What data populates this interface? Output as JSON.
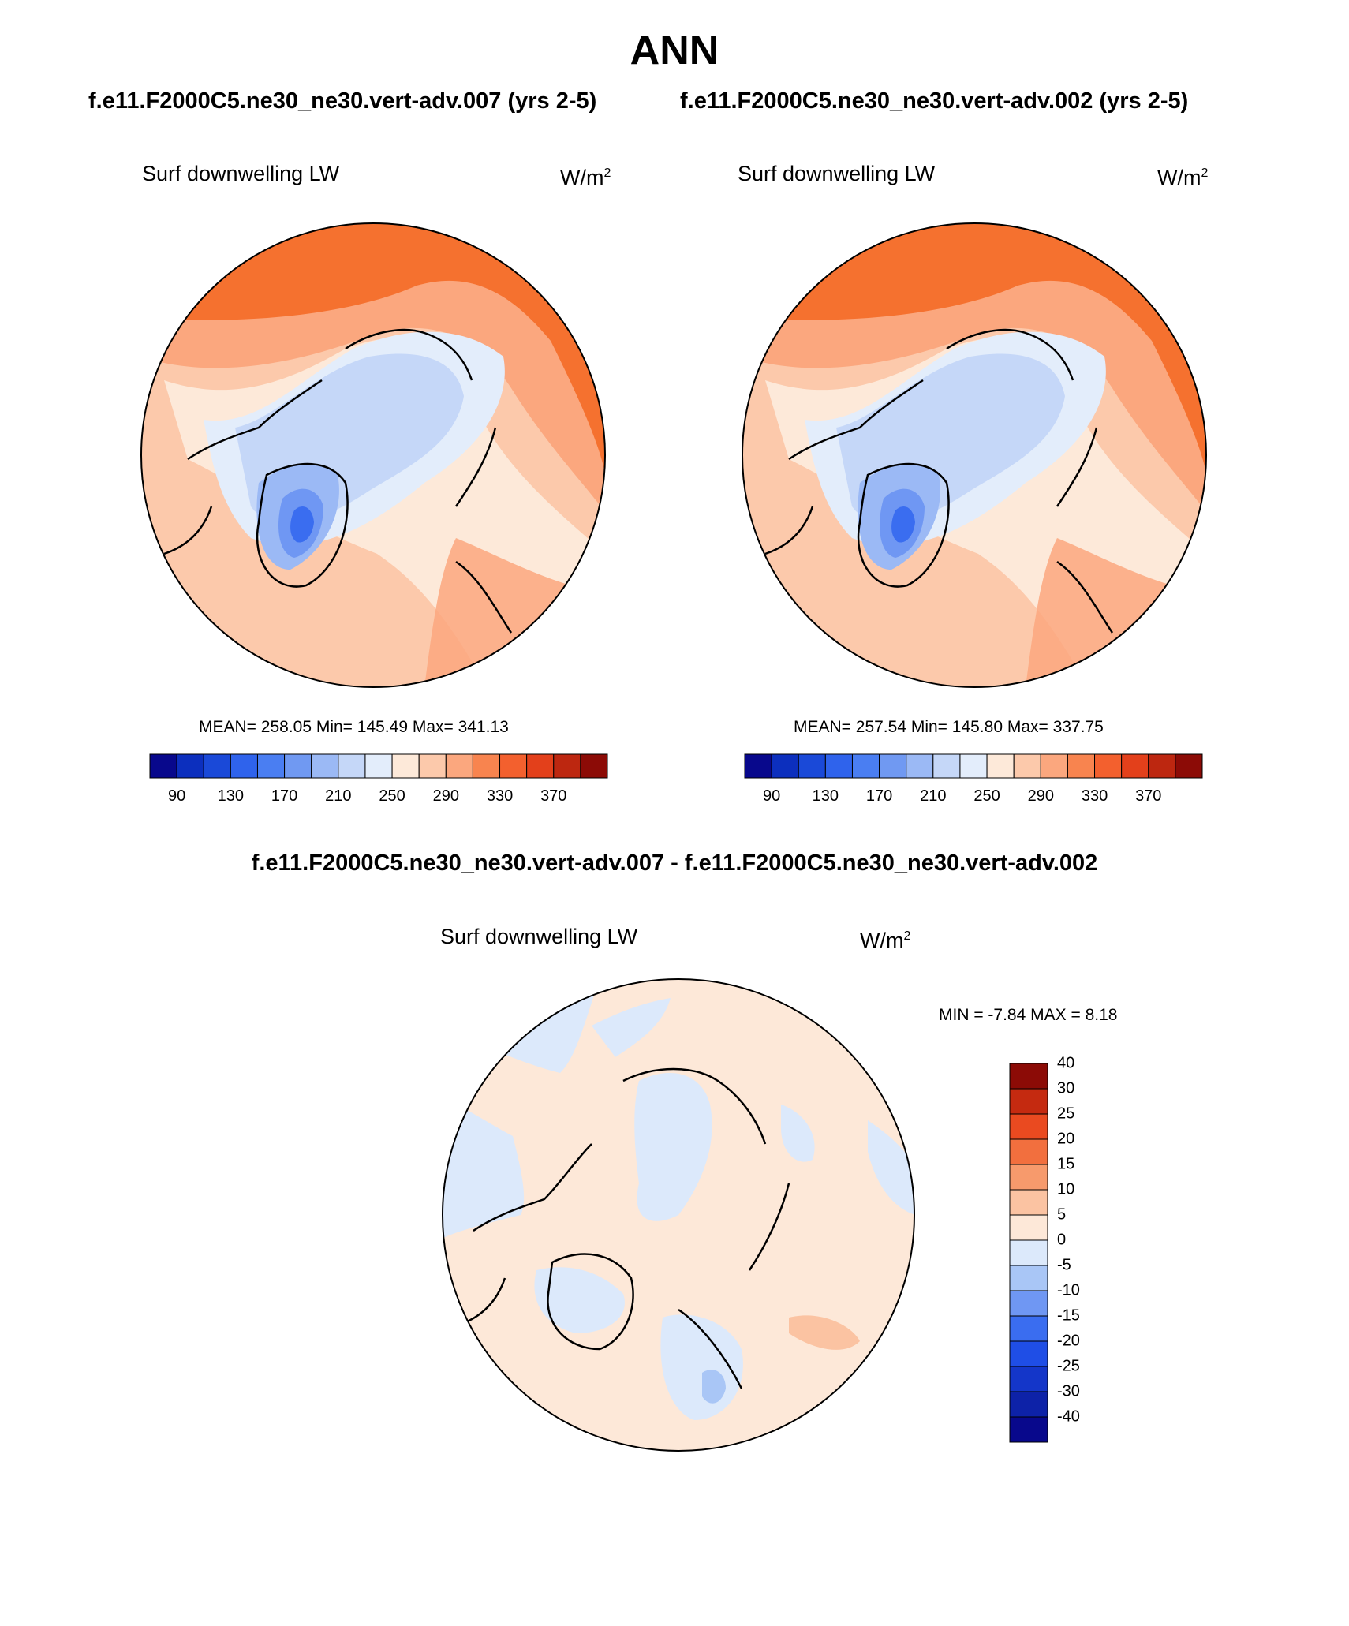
{
  "header": {
    "title": "ANN",
    "case_left": "f.e11.F2000C5.ne30_ne30.vert-adv.007 (yrs 2-5)",
    "case_right": "f.e11.F2000C5.ne30_ne30.vert-adv.002 (yrs 2-5)",
    "diff_title": "f.e11.F2000C5.ne30_ne30.vert-adv.007 - f.e11.F2000C5.ne30_ne30.vert-adv.002"
  },
  "panels": {
    "left": {
      "variable": "Surf downwelling LW",
      "units_base": "W/m",
      "units_exp": "2",
      "stats": "MEAN= 258.05  Min= 145.49  Max= 341.13"
    },
    "right": {
      "variable": "Surf downwelling LW",
      "units_base": "W/m",
      "units_exp": "2",
      "stats": "MEAN= 257.54  Min= 145.80  Max= 337.75"
    },
    "diff": {
      "variable": "Surf downwelling LW",
      "units_base": "W/m",
      "units_exp": "2",
      "stats": "MIN =  -7.84 MAX =   8.18"
    }
  },
  "colorbars": {
    "absolute": {
      "colors": [
        "#08088c",
        "#0c2fbe",
        "#1a49d8",
        "#2f63ec",
        "#4a7ef2",
        "#7099f2",
        "#9bb9f5",
        "#c5d7f8",
        "#e3edfb",
        "#fde9d9",
        "#fcc9ab",
        "#fba77e",
        "#f8844f",
        "#f3602e",
        "#e3401b",
        "#bd2710",
        "#8c0b06"
      ],
      "tick_labels": [
        "90",
        "130",
        "170",
        "210",
        "250",
        "290",
        "330",
        "370"
      ]
    },
    "difference": {
      "colors": [
        "#08088c",
        "#0d22a8",
        "#1436c9",
        "#1f4ee6",
        "#3a6df0",
        "#6f97f3",
        "#a9c6f6",
        "#dce9fb",
        "#fde8d8",
        "#fbc3a2",
        "#f79a6c",
        "#f26f3e",
        "#ea4a20",
        "#c52a10",
        "#8c0b06"
      ],
      "tick_labels": [
        "-40",
        "-30",
        "-25",
        "-20",
        "-15",
        "-10",
        "-5",
        "0",
        "5",
        "10",
        "15",
        "20",
        "25",
        "30",
        "40"
      ]
    }
  }
}
